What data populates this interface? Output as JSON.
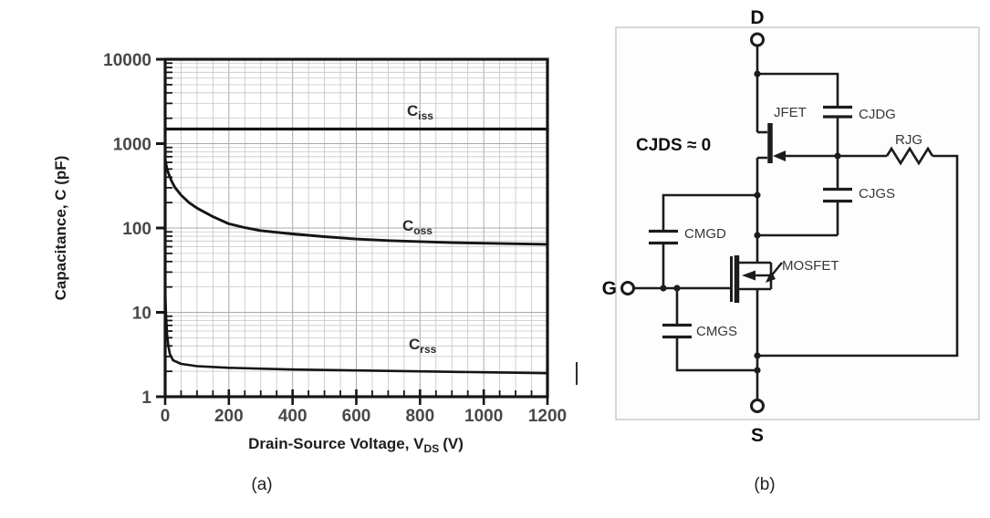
{
  "figure": {
    "caption_a": "(a)",
    "caption_b": "(b)"
  },
  "chart_data": {
    "type": "line",
    "title": "",
    "xlabel_main": "Drain-Source Voltage, V",
    "xlabel_sub": "DS",
    "xlabel_unit": "(V)",
    "ylabel": "Capacitance, C (pF)",
    "x_axis": {
      "min": 0,
      "max": 1200,
      "major_step": 200,
      "minor_step": 50,
      "tick_labels": [
        "0",
        "200",
        "400",
        "600",
        "800",
        "1000",
        "1200"
      ]
    },
    "y_axis": {
      "scale": "log",
      "min": 1,
      "max": 10000,
      "ticks": [
        10000,
        1000,
        100,
        10,
        1
      ]
    },
    "grid": true,
    "legend_position": "inline-labels",
    "series": [
      {
        "name": "Ciss",
        "label_main": "C",
        "label_sub": "iss",
        "points": [
          [
            0,
            1490
          ],
          [
            100,
            1490
          ],
          [
            200,
            1490
          ],
          [
            400,
            1490
          ],
          [
            600,
            1490
          ],
          [
            800,
            1490
          ],
          [
            1000,
            1490
          ],
          [
            1200,
            1490
          ]
        ]
      },
      {
        "name": "Coss",
        "label_main": "C",
        "label_sub": "oss",
        "points": [
          [
            0,
            650
          ],
          [
            5,
            520
          ],
          [
            10,
            450
          ],
          [
            20,
            360
          ],
          [
            30,
            305
          ],
          [
            50,
            245
          ],
          [
            75,
            200
          ],
          [
            100,
            172
          ],
          [
            150,
            136
          ],
          [
            200,
            112
          ],
          [
            250,
            101
          ],
          [
            300,
            93
          ],
          [
            400,
            85
          ],
          [
            500,
            79
          ],
          [
            600,
            74
          ],
          [
            700,
            71
          ],
          [
            800,
            69
          ],
          [
            900,
            67
          ],
          [
            1000,
            66
          ],
          [
            1100,
            65
          ],
          [
            1200,
            64
          ]
        ]
      },
      {
        "name": "Crss",
        "label_main": "C",
        "label_sub": "rss",
        "points": [
          [
            0,
            18
          ],
          [
            3,
            9
          ],
          [
            6,
            5.5
          ],
          [
            10,
            4
          ],
          [
            15,
            3.2
          ],
          [
            25,
            2.7
          ],
          [
            50,
            2.45
          ],
          [
            100,
            2.3
          ],
          [
            200,
            2.2
          ],
          [
            400,
            2.1
          ],
          [
            600,
            2.05
          ],
          [
            800,
            2.0
          ],
          [
            1000,
            1.95
          ],
          [
            1200,
            1.9
          ]
        ]
      }
    ]
  },
  "circuit": {
    "terminals": {
      "drain": "D",
      "gate": "G",
      "source": "S"
    },
    "note": "CJDS ≈ 0",
    "components": {
      "jfet": "JFET",
      "mosfet": "MOSFET",
      "cjdg": "CJDG",
      "cjgs": "CJGS",
      "rjg": "RJG",
      "cmgd": "CMGD",
      "cmgs": "CMGS"
    }
  }
}
